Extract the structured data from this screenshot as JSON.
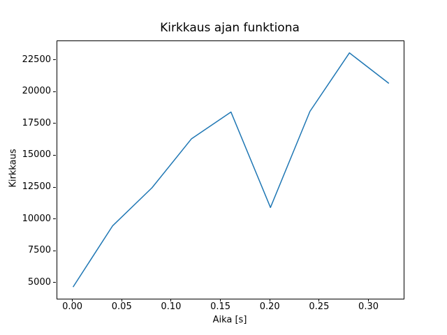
{
  "chart_data": {
    "type": "line",
    "title": "Kirkkaus ajan funktiona",
    "xlabel": "Aika [s]",
    "ylabel": "Kirkkaus",
    "x": [
      0.0,
      0.04,
      0.08,
      0.12,
      0.16,
      0.2,
      0.24,
      0.28,
      0.32
    ],
    "y": [
      4700,
      9500,
      12500,
      16350,
      18450,
      10950,
      18500,
      23100,
      20700
    ],
    "xlim": [
      -0.016,
      0.335
    ],
    "ylim": [
      3780,
      24020
    ],
    "xticks": [
      0.0,
      0.05,
      0.1,
      0.15,
      0.2,
      0.25,
      0.3
    ],
    "xtick_labels": [
      "0.00",
      "0.05",
      "0.10",
      "0.15",
      "0.20",
      "0.25",
      "0.30"
    ],
    "yticks": [
      5000,
      7500,
      10000,
      12500,
      15000,
      17500,
      20000,
      22500
    ],
    "ytick_labels": [
      "5000",
      "7500",
      "10000",
      "12500",
      "15000",
      "17500",
      "20000",
      "22500"
    ],
    "grid": false,
    "legend": null,
    "line_color": "#1f77b4",
    "line_width": 1.5,
    "background_color": "#ffffff",
    "spine_color": "#000000"
  }
}
